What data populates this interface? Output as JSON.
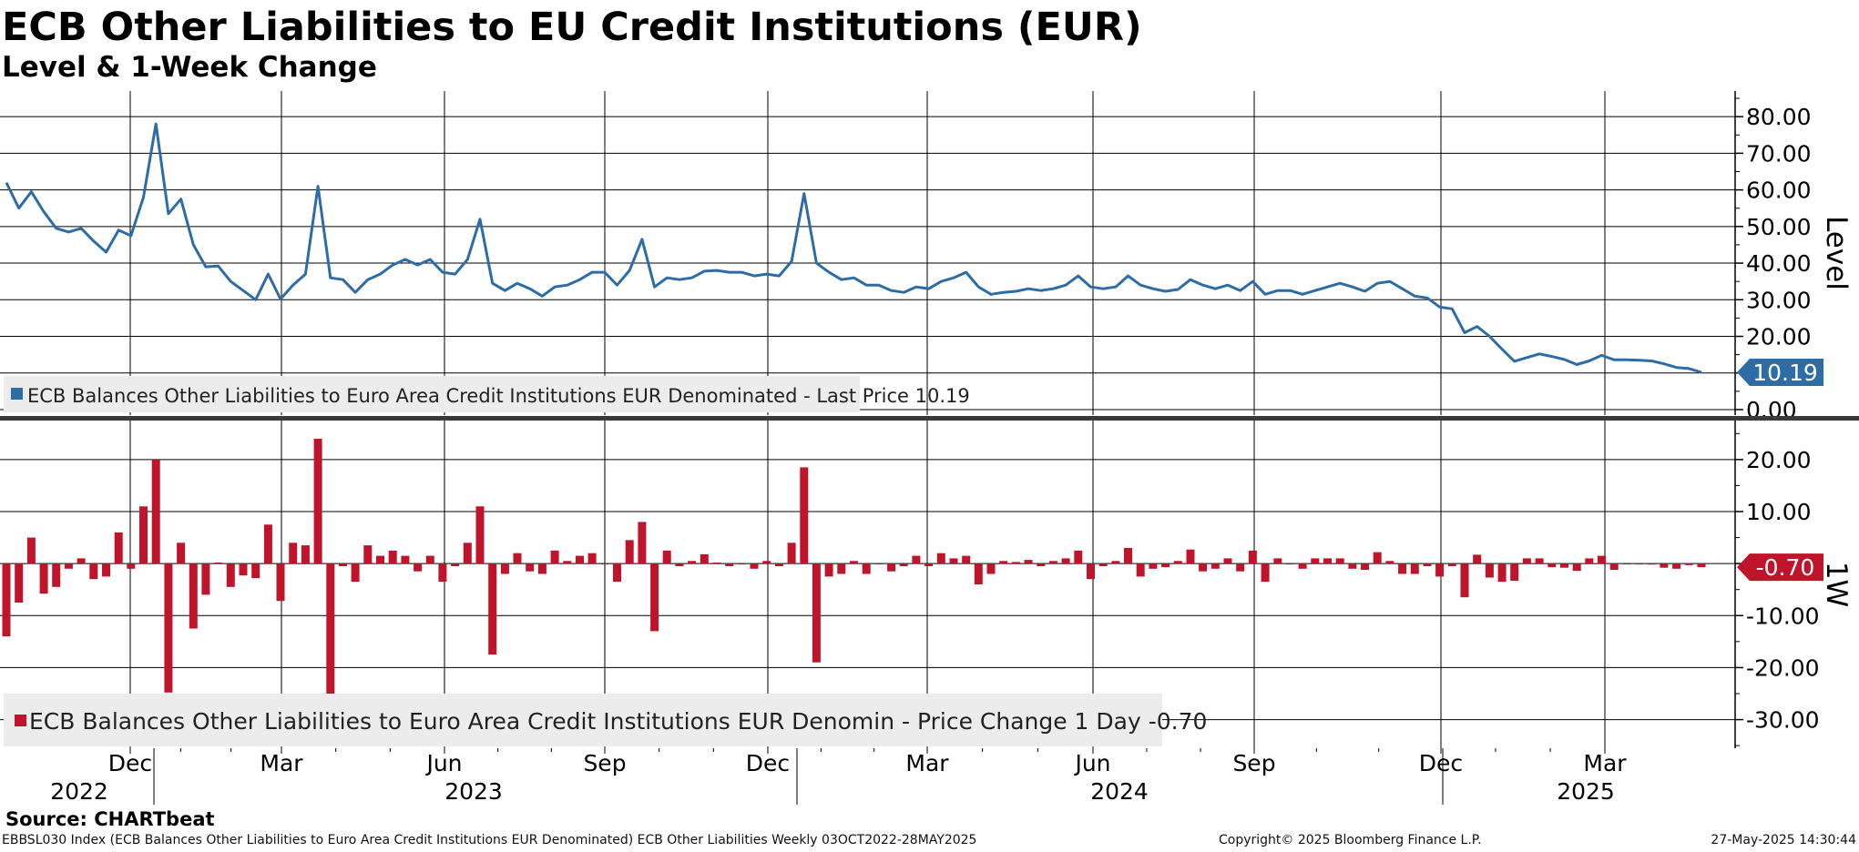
{
  "title": "ECB Other Liabilities to EU Credit Institutions (EUR)",
  "subtitle": "Level & 1-Week Change",
  "source": "Source: CHARTbeat",
  "footer": {
    "description": "EBBSL030 Index (ECB Balances Other Liabilities to Euro Area Credit Institutions EUR Denominated) ECB Other Liabilities  Weekly 03OCT2022-28MAY2025",
    "copyright": "Copyright© 2025 Bloomberg Finance L.P.",
    "timestamp": "27-May-2025 14:30:44"
  },
  "colors": {
    "level": "#2e6ca6",
    "change": "#c0142b",
    "grid": "#000000"
  },
  "chart_data": [
    {
      "type": "line",
      "ylabel": "Level",
      "ylim": [
        -1.5,
        87
      ],
      "yticks": [
        "80.00",
        "70.00",
        "60.00",
        "50.00",
        "40.00",
        "30.00",
        "20.00",
        "10.00",
        "0.00"
      ],
      "x_range": [
        "2022-10-03",
        "2025-05-28"
      ],
      "legend": "ECB Balances Other Liabilities to Euro Area Credit Institutions EUR Denominated - Last Price 10.19",
      "last_value_label": "10.19",
      "series": [
        {
          "values": [
            62,
            55,
            59.5,
            54,
            49.5,
            48.5,
            49.5,
            46,
            43,
            49,
            47.5,
            58,
            78,
            53.5,
            57.5,
            45,
            39,
            39.2,
            35,
            32.5,
            30,
            37,
            30.2,
            34,
            37,
            61,
            36,
            35.5,
            32,
            35.5,
            37,
            39.5,
            41,
            39.5,
            41,
            37.5,
            37,
            41,
            52,
            34.5,
            32.5,
            34.5,
            33,
            31,
            33.5,
            34,
            35.5,
            37.5,
            37.5,
            34,
            38,
            46.5,
            33.5,
            36,
            35.5,
            36,
            37.8,
            38,
            37.5,
            37.5,
            36.5,
            37,
            36.5,
            40.5,
            59,
            40,
            37.5,
            35.5,
            36,
            34,
            34,
            32.5,
            32,
            33.5,
            33,
            35,
            36,
            37.5,
            33.5,
            31.5,
            32,
            32.3,
            33,
            32.5,
            33,
            34,
            36.5,
            33.5,
            33,
            33.5,
            36.5,
            34,
            33,
            32.3,
            32.8,
            35.5,
            34,
            33,
            34,
            32.5,
            35,
            31.5,
            32.5,
            32.5,
            31.5,
            32.5,
            33.5,
            34.5,
            33.5,
            32.3,
            34.5,
            35,
            33,
            31,
            30.5,
            28,
            27.5,
            21,
            22.7,
            20,
            16.5,
            13.2,
            14.2,
            15.2,
            14.5,
            13.7,
            12.3,
            13.3,
            14.8,
            13.6,
            13.6,
            13.5,
            13.3,
            12.5,
            11.5,
            11.2,
            10.19
          ]
        }
      ]
    },
    {
      "type": "bar",
      "ylabel": "1W",
      "ylim": [
        -35.5,
        27.5
      ],
      "yticks": [
        "20.00",
        "10.00",
        "0.00",
        "-10.00",
        "-20.00",
        "-30.00"
      ],
      "x_range": [
        "2022-10-03",
        "2025-05-28"
      ],
      "xticks": [
        "Dec",
        "Mar",
        "Jun",
        "Sep",
        "Dec",
        "Mar",
        "Jun",
        "Sep",
        "Dec",
        "Mar"
      ],
      "years": [
        "2022",
        "2023",
        "2024",
        "2025"
      ],
      "legend": "ECB Balances Other Liabilities to Euro Area Credit Institutions EUR Denomin - Price Change 1 Day -0.70",
      "last_value_label": "-0.70",
      "series": [
        {
          "values": [
            -14,
            -7.5,
            5,
            -5.8,
            -4.5,
            -1,
            1,
            -3,
            -2.5,
            6,
            -1,
            11,
            20,
            -24.8,
            4,
            -12.5,
            -6,
            0.2,
            -4.5,
            -2.3,
            -2.8,
            7.5,
            -7.2,
            4,
            3.5,
            24,
            -25,
            -0.5,
            -3.5,
            3.5,
            1.5,
            2.5,
            1.5,
            -1.5,
            1.5,
            -3.5,
            -0.5,
            4,
            11,
            -17.5,
            -2,
            2,
            -1.5,
            -2,
            2.5,
            0.5,
            1.5,
            2,
            0,
            -3.5,
            4.5,
            8,
            -13,
            2.5,
            -0.5,
            0.5,
            1.8,
            0.2,
            -0.5,
            0,
            -1,
            0.5,
            -0.5,
            4,
            18.5,
            -19,
            -2.5,
            -2,
            0.5,
            -2,
            0,
            -1.5,
            -0.5,
            1.5,
            -0.5,
            2,
            1,
            1.5,
            -4,
            -2,
            0.5,
            0.3,
            0.7,
            -0.5,
            0.5,
            1,
            2.5,
            -3,
            -0.5,
            0.5,
            3,
            -2.5,
            -1,
            -0.7,
            0.5,
            2.7,
            -1.5,
            -1,
            1,
            -1.5,
            2.5,
            -3.5,
            1,
            0,
            -1,
            1,
            1,
            1,
            -1,
            -1.2,
            2.2,
            0.5,
            -2,
            -2,
            -0.5,
            -2.5,
            -0.5,
            -6.5,
            1.7,
            -2.7,
            -3.5,
            -3.3,
            1,
            1,
            -0.7,
            -0.8,
            -1.4,
            1,
            1.5,
            -1.2,
            0,
            -0.1,
            -0.2,
            -0.8,
            -1,
            -0.3,
            -0.7
          ]
        }
      ]
    }
  ]
}
